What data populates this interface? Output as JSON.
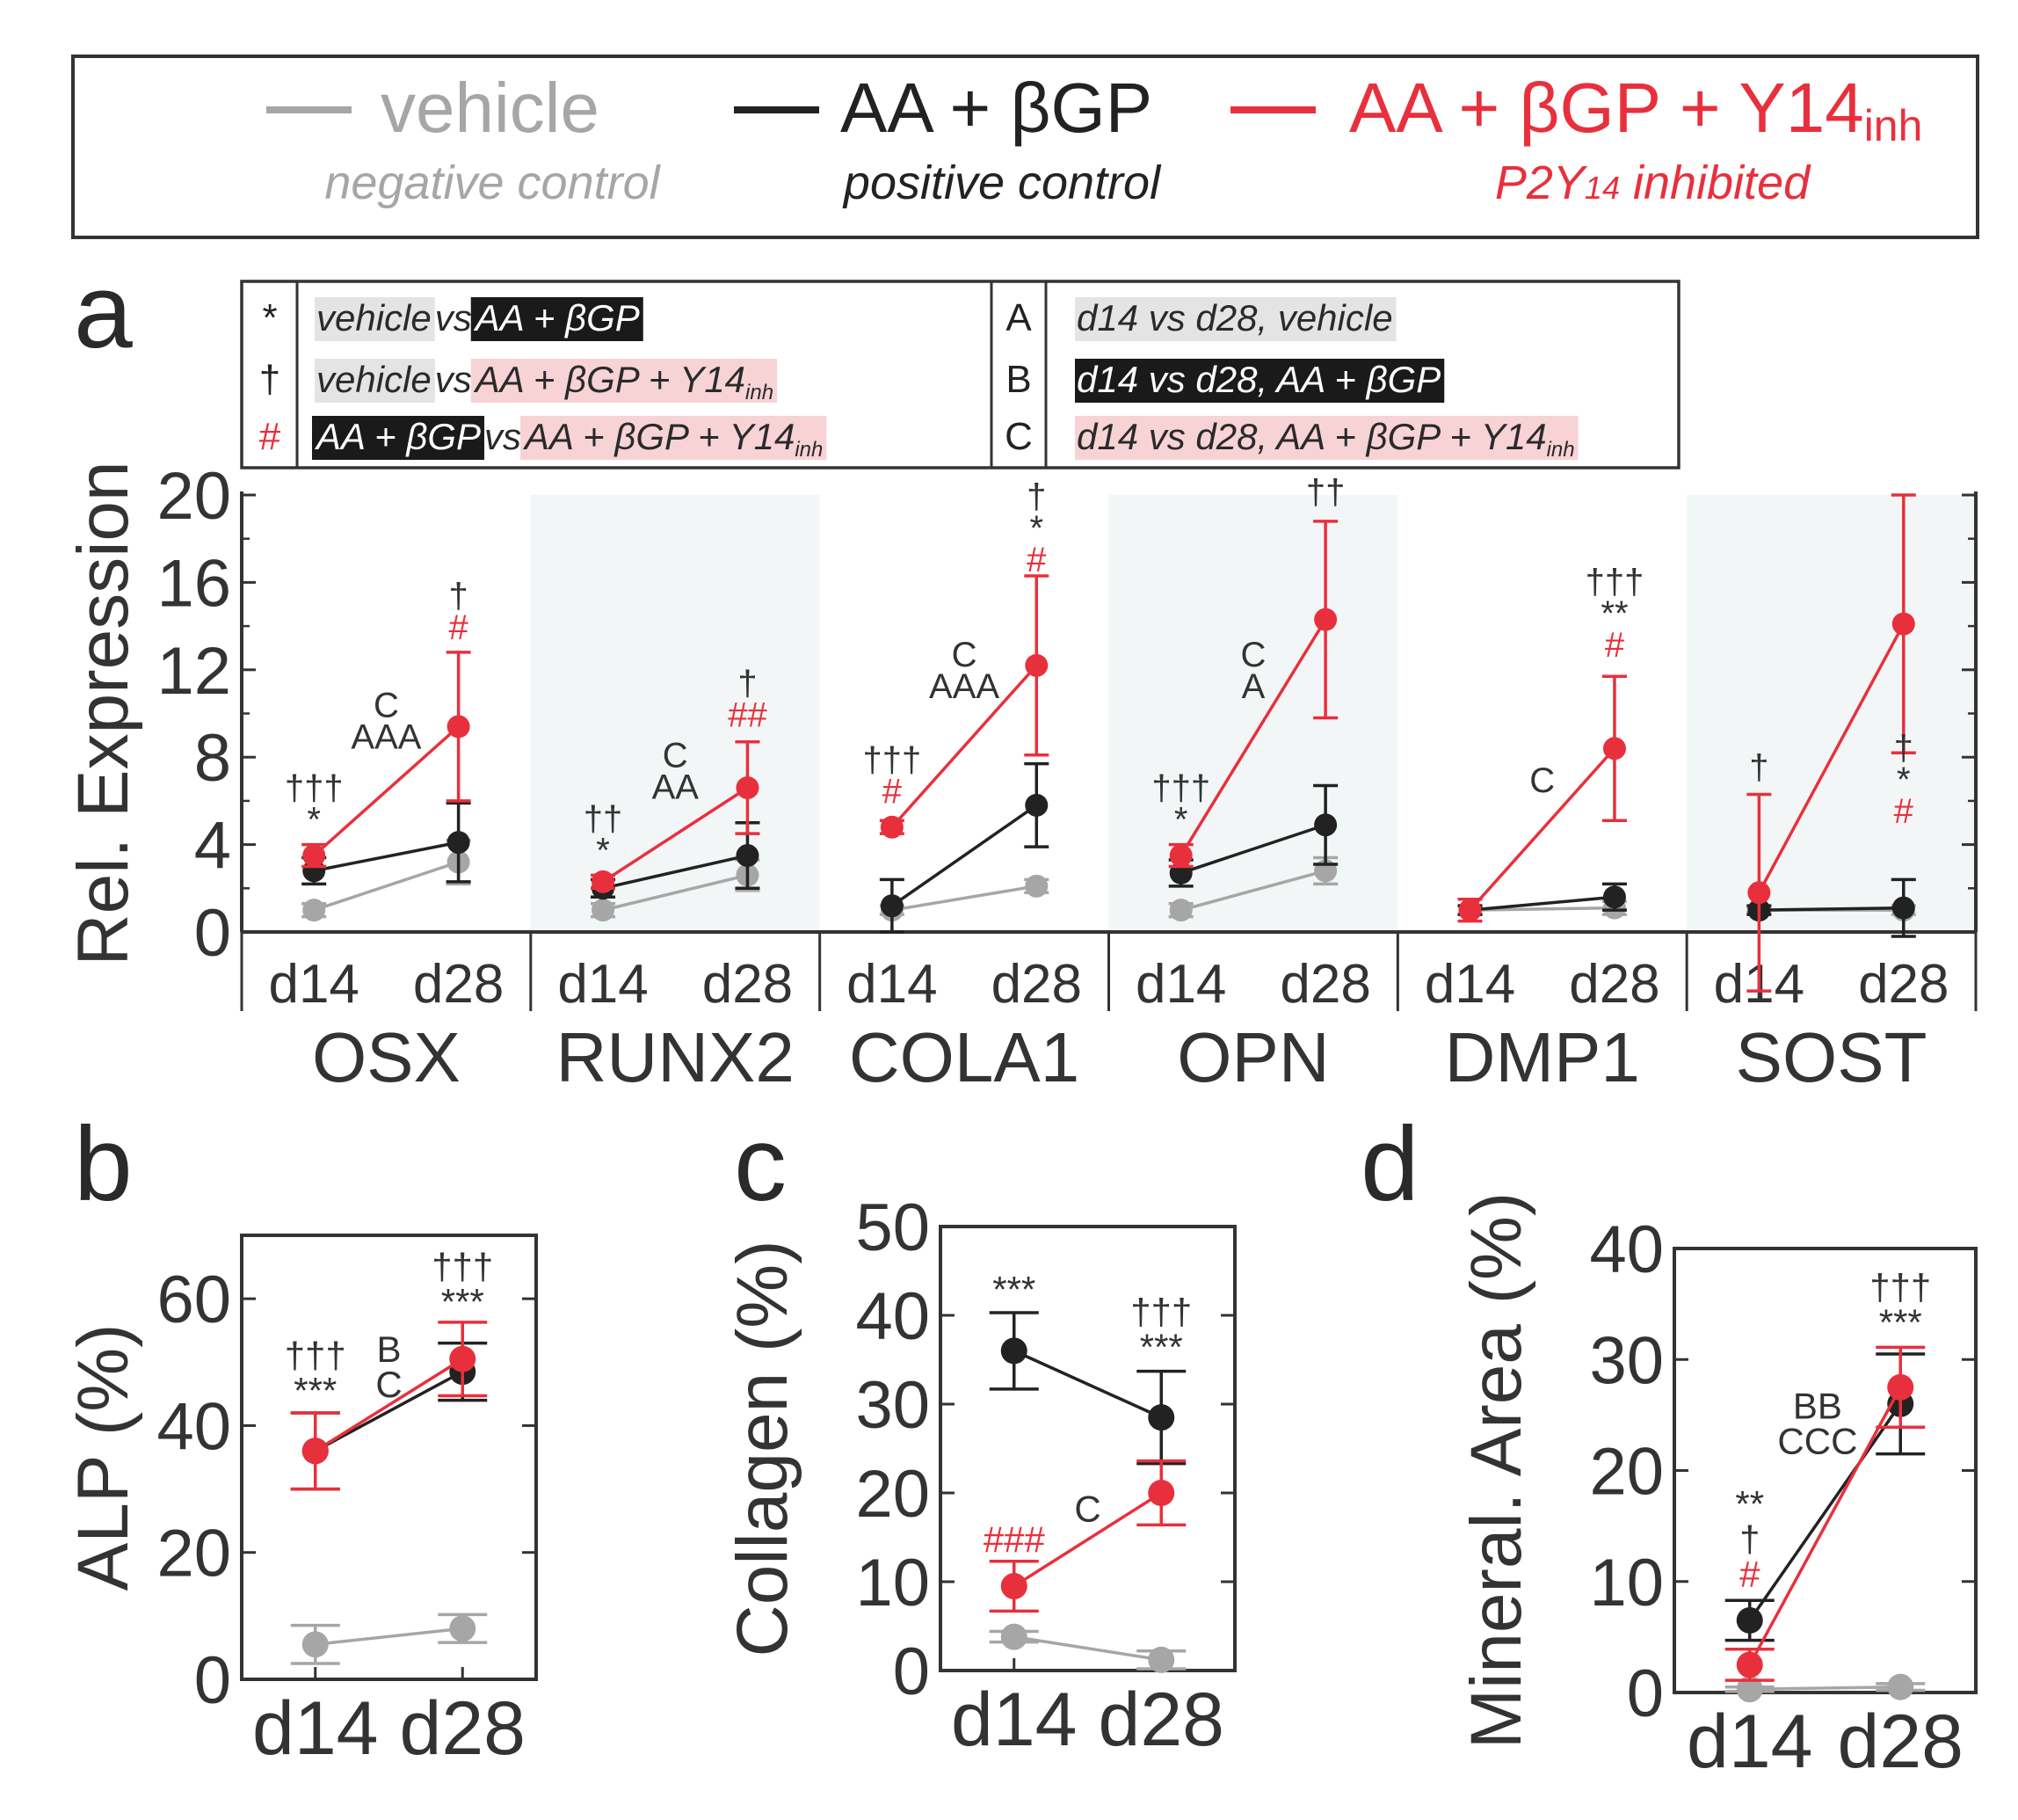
{
  "colors": {
    "vehicle": "#a6a6a6",
    "positive": "#222222",
    "inhibited": "#e8303c",
    "highlight_vehicle": "#e4e4e4",
    "highlight_positive": "#1a1a1a",
    "highlight_inhibited": "#f7d3d6",
    "panel_shade": "#f3f6f6"
  },
  "legend": {
    "vehicle": {
      "label": "vehicle",
      "desc": "negative control"
    },
    "positive": {
      "label": "AA + βGP",
      "desc": "positive control"
    },
    "inhibited": {
      "label": "AA + βGP + Y14",
      "sub": "inh",
      "desc_a": "P2Y",
      "desc_sub": "14",
      "desc_b": " inhibited"
    }
  },
  "panel_letters": {
    "a": "a",
    "b": "b",
    "c": "c",
    "d": "d"
  },
  "key": {
    "rows_left": [
      {
        "sym": "*",
        "sym_color": "positive",
        "parts": [
          {
            "t": "vehicle",
            "hl": "vehicle"
          },
          {
            "t": " vs "
          },
          {
            "t": "AA + βGP",
            "hl": "positive"
          }
        ]
      },
      {
        "sym": "†",
        "sym_color": "positive",
        "parts": [
          {
            "t": "vehicle",
            "hl": "vehicle"
          },
          {
            "t": " vs "
          },
          {
            "t": "AA + βGP + Y14",
            "sub": "inh",
            "hl": "inhibited"
          }
        ]
      },
      {
        "sym": "#",
        "sym_color": "inhibited",
        "parts": [
          {
            "t": "AA + βGP",
            "hl": "positive"
          },
          {
            "t": " vs "
          },
          {
            "t": "AA + βGP + Y14",
            "sub": "inh",
            "hl": "inhibited"
          }
        ]
      }
    ],
    "rows_right": [
      {
        "sym": "A",
        "parts": [
          {
            "t": "d14 vs d28, vehicle",
            "hl": "vehicle"
          }
        ]
      },
      {
        "sym": "B",
        "parts": [
          {
            "t": "d14 vs d28, AA + βGP",
            "hl": "positive"
          }
        ]
      },
      {
        "sym": "C",
        "parts": [
          {
            "t": "d14 vs d28, AA + βGP + Y14",
            "sub": "inh",
            "hl": "inhibited"
          }
        ]
      }
    ]
  },
  "chart_data": [
    {
      "id": "a",
      "type": "line",
      "ylabel": "Rel. Expression",
      "ylim": [
        0,
        20
      ],
      "yticks": [
        0,
        4,
        8,
        12,
        16,
        20
      ],
      "x": [
        "d14",
        "d28"
      ],
      "genes": [
        {
          "name": "OSX",
          "shaded": false,
          "series": {
            "vehicle": {
              "mean": [
                1.0,
                3.2
              ],
              "err": [
                0.3,
                1.0
              ]
            },
            "positive": {
              "mean": [
                2.8,
                4.1
              ],
              "err": [
                0.6,
                1.8
              ]
            },
            "inhibited": {
              "mean": [
                3.5,
                9.4
              ],
              "err": [
                0.5,
                3.4
              ]
            }
          },
          "annotations": [
            {
              "x": 0,
              "y": 4.6,
              "lines": [
                {
                  "t": "†††",
                  "c": "positive"
                },
                {
                  "t": "*",
                  "c": "positive"
                }
              ]
            },
            {
              "x": 0.5,
              "y": 8.4,
              "lines": [
                {
                  "t": "C",
                  "c": "positive"
                },
                {
                  "t": "AAA",
                  "c": "positive"
                }
              ]
            },
            {
              "x": 1,
              "y": 13.4,
              "lines": [
                {
                  "t": "†",
                  "c": "positive"
                },
                {
                  "t": "#",
                  "c": "inhibited"
                }
              ]
            }
          ]
        },
        {
          "name": "RUNX2",
          "shaded": true,
          "series": {
            "vehicle": {
              "mean": [
                1.0,
                2.6
              ],
              "err": [
                0.3,
                0.7
              ]
            },
            "positive": {
              "mean": [
                2.0,
                3.5
              ],
              "err": [
                0.4,
                1.5
              ]
            },
            "inhibited": {
              "mean": [
                2.3,
                6.6
              ],
              "err": [
                0.3,
                2.1
              ]
            }
          },
          "annotations": [
            {
              "x": 0,
              "y": 3.2,
              "lines": [
                {
                  "t": "††",
                  "c": "positive"
                },
                {
                  "t": "*",
                  "c": "positive"
                }
              ]
            },
            {
              "x": 0.5,
              "y": 6.1,
              "lines": [
                {
                  "t": "C",
                  "c": "positive"
                },
                {
                  "t": "AA",
                  "c": "positive"
                }
              ]
            },
            {
              "x": 1,
              "y": 9.4,
              "lines": [
                {
                  "t": "†",
                  "c": "positive"
                },
                {
                  "t": "##",
                  "c": "inhibited"
                }
              ]
            }
          ]
        },
        {
          "name": "COLA1",
          "shaded": false,
          "series": {
            "vehicle": {
              "mean": [
                1.0,
                2.1
              ],
              "err": [
                0.2,
                0.3
              ]
            },
            "positive": {
              "mean": [
                1.2,
                5.8
              ],
              "err": [
                1.2,
                1.9
              ]
            },
            "inhibited": {
              "mean": [
                4.8,
                12.2
              ],
              "err": [
                0.3,
                4.1
              ]
            }
          },
          "annotations": [
            {
              "x": 0,
              "y": 5.9,
              "lines": [
                {
                  "t": "†††",
                  "c": "positive"
                },
                {
                  "t": "#",
                  "c": "inhibited"
                }
              ]
            },
            {
              "x": 0.5,
              "y": 10.7,
              "lines": [
                {
                  "t": "C",
                  "c": "positive"
                },
                {
                  "t": "AAA",
                  "c": "positive"
                }
              ]
            },
            {
              "x": 1,
              "y": 16.5,
              "lines": [
                {
                  "t": "†",
                  "c": "positive"
                },
                {
                  "t": "*",
                  "c": "positive"
                },
                {
                  "t": "#",
                  "c": "inhibited"
                }
              ]
            }
          ]
        },
        {
          "name": "OPN",
          "shaded": true,
          "series": {
            "vehicle": {
              "mean": [
                1.0,
                2.8
              ],
              "err": [
                0.3,
                0.6
              ]
            },
            "positive": {
              "mean": [
                2.7,
                4.9
              ],
              "err": [
                0.6,
                1.8
              ]
            },
            "inhibited": {
              "mean": [
                3.5,
                14.3
              ],
              "err": [
                0.5,
                4.5
              ]
            }
          },
          "annotations": [
            {
              "x": 0,
              "y": 4.6,
              "lines": [
                {
                  "t": "†††",
                  "c": "positive"
                },
                {
                  "t": "*",
                  "c": "positive"
                }
              ]
            },
            {
              "x": 0.5,
              "y": 10.7,
              "lines": [
                {
                  "t": "C",
                  "c": "positive"
                },
                {
                  "t": "A",
                  "c": "positive"
                }
              ]
            },
            {
              "x": 1,
              "y": 19.6,
              "lines": [
                {
                  "t": "††",
                  "c": "positive"
                }
              ]
            }
          ]
        },
        {
          "name": "DMP1",
          "shaded": false,
          "series": {
            "vehicle": {
              "mean": [
                1.0,
                1.1
              ],
              "err": [
                0.2,
                0.3
              ]
            },
            "positive": {
              "mean": [
                1.0,
                1.6
              ],
              "err": [
                0.2,
                0.6
              ]
            },
            "inhibited": {
              "mean": [
                1.0,
                8.4
              ],
              "err": [
                0.5,
                3.3
              ]
            }
          },
          "annotations": [
            {
              "x": 0.5,
              "y": 6.4,
              "lines": [
                {
                  "t": "C",
                  "c": "positive"
                }
              ]
            },
            {
              "x": 1,
              "y": 12.6,
              "lines": [
                {
                  "t": "†††",
                  "c": "positive"
                },
                {
                  "t": "**",
                  "c": "positive"
                },
                {
                  "t": "#",
                  "c": "inhibited"
                }
              ]
            }
          ]
        },
        {
          "name": "SOST",
          "shaded": true,
          "series": {
            "vehicle": {
              "mean": [
                1.0,
                1.0
              ],
              "err": [
                0.1,
                0.2
              ]
            },
            "positive": {
              "mean": [
                1.0,
                1.1
              ],
              "err": [
                0.2,
                1.3
              ]
            },
            "inhibited": {
              "mean": [
                1.8,
                14.1
              ],
              "err": [
                4.5,
                5.9
              ]
            }
          },
          "annotations": [
            {
              "x": 0,
              "y": 7.0,
              "lines": [
                {
                  "t": "†",
                  "c": "positive"
                }
              ]
            },
            {
              "x": 1,
              "y": 5.0,
              "lines": [
                {
                  "t": "†",
                  "c": "positive"
                },
                {
                  "t": "*",
                  "c": "positive"
                },
                {
                  "t": "#",
                  "c": "inhibited"
                }
              ]
            }
          ]
        }
      ]
    },
    {
      "id": "b",
      "type": "line",
      "ylabel": "ALP (%)",
      "ylim": [
        0,
        70
      ],
      "yticks": [
        0,
        20,
        40,
        60
      ],
      "yticklabels": [
        0,
        20,
        40,
        60
      ],
      "x": [
        "d14",
        "d28"
      ],
      "series": {
        "vehicle": {
          "mean": [
            5.5,
            8.0
          ],
          "err": [
            3.0,
            2.2
          ]
        },
        "positive": {
          "mean": [
            36,
            48.5
          ],
          "err": [
            6.0,
            4.5
          ]
        },
        "inhibited": {
          "mean": [
            36,
            50.5
          ],
          "err": [
            6.0,
            5.8
          ]
        }
      },
      "annotations": [
        {
          "x": 0,
          "y": 43.5,
          "lines": [
            {
              "t": "†††",
              "c": "positive"
            },
            {
              "t": "***",
              "c": "positive"
            }
          ]
        },
        {
          "x": 0.5,
          "y": 44.5,
          "lines": [
            {
              "t": "B",
              "c": "positive"
            },
            {
              "t": "C",
              "c": "positive"
            }
          ]
        },
        {
          "x": 1,
          "y": 57.5,
          "lines": [
            {
              "t": "†††",
              "c": "positive"
            },
            {
              "t": "***",
              "c": "positive"
            }
          ]
        }
      ]
    },
    {
      "id": "c",
      "type": "line",
      "ylabel": "Collagen (%)",
      "ylim": [
        0,
        50
      ],
      "yticks": [
        0,
        10,
        20,
        30,
        40,
        50
      ],
      "yticklabels": [
        0,
        10,
        20,
        30,
        40,
        50
      ],
      "x": [
        "d14",
        "d28"
      ],
      "series": {
        "vehicle": {
          "mean": [
            3.8,
            1.2
          ],
          "err": [
            0.6,
            1.0
          ]
        },
        "positive": {
          "mean": [
            36.0,
            28.5
          ],
          "err": [
            4.3,
            5.2
          ]
        },
        "inhibited": {
          "mean": [
            9.5,
            20.0
          ],
          "err": [
            2.8,
            3.6
          ]
        }
      },
      "annotations": [
        {
          "x": 0,
          "y": 41.5,
          "lines": [
            {
              "t": "***",
              "c": "positive"
            }
          ]
        },
        {
          "x": 0,
          "y": 13.3,
          "lines": [
            {
              "t": "###",
              "c": "inhibited"
            }
          ]
        },
        {
          "x": 0.5,
          "y": 16.8,
          "lines": [
            {
              "t": "C",
              "c": "positive"
            }
          ]
        },
        {
          "x": 1,
          "y": 35.0,
          "lines": [
            {
              "t": "†††",
              "c": "positive"
            },
            {
              "t": "***",
              "c": "positive"
            }
          ]
        }
      ]
    },
    {
      "id": "d",
      "type": "line",
      "ylabel": "Mineral. Area (%)",
      "ylim": [
        0,
        40
      ],
      "yticks": [
        0,
        10,
        20,
        30,
        40
      ],
      "yticklabels": [
        0,
        10,
        20,
        30,
        40
      ],
      "x": [
        "d14",
        "d28"
      ],
      "series": {
        "vehicle": {
          "mean": [
            0.3,
            0.5
          ],
          "err": [
            0.2,
            0.3
          ]
        },
        "positive": {
          "mean": [
            6.5,
            26.0
          ],
          "err": [
            1.8,
            4.5
          ]
        },
        "inhibited": {
          "mean": [
            2.5,
            27.5
          ],
          "err": [
            1.4,
            3.6
          ]
        }
      },
      "annotations": [
        {
          "x": 0,
          "y": 9.5,
          "lines": [
            {
              "t": "**",
              "c": "positive"
            },
            {
              "t": "†",
              "c": "positive"
            },
            {
              "t": "#",
              "c": "inhibited"
            }
          ]
        },
        {
          "x": 0.45,
          "y": 21.5,
          "lines": [
            {
              "t": "BB",
              "c": "positive"
            },
            {
              "t": "CCC",
              "c": "positive"
            }
          ]
        },
        {
          "x": 1,
          "y": 32.2,
          "lines": [
            {
              "t": "†††",
              "c": "positive"
            },
            {
              "t": "***",
              "c": "positive"
            }
          ]
        }
      ]
    }
  ]
}
